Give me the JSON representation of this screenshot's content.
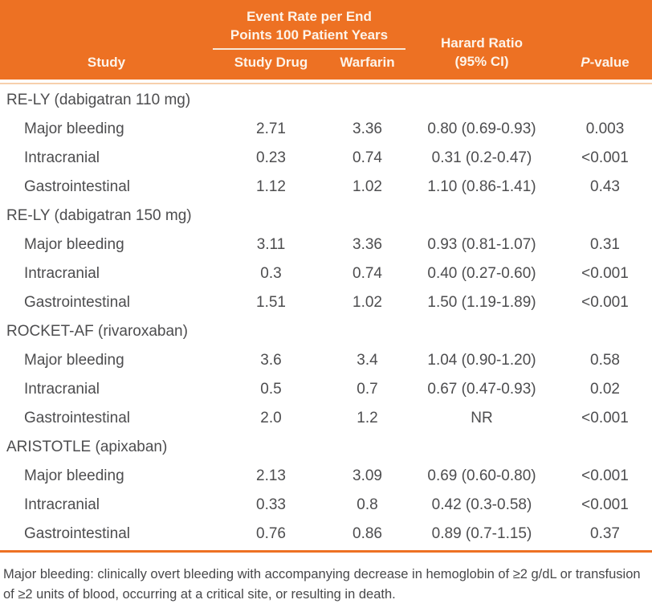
{
  "chart_data": {
    "type": "table",
    "span_header": "Event Rate per End Points 100 Patient Years",
    "columns": [
      "Study",
      "Study Drug",
      "Warfarin",
      "Harard Ratio (95% CI)",
      "P-value"
    ],
    "header": {
      "study": "Study",
      "study_drug": "Study Drug",
      "warfarin": "Warfarin",
      "hazard_line1": "Harard Ratio",
      "hazard_line2": "(95% CI)",
      "p_italic": "P",
      "p_suffix": "-value"
    },
    "groups": [
      {
        "name": "RE-LY (dabigatran 110 mg)",
        "rows": [
          {
            "label": "Major bleeding",
            "study_drug": "2.71",
            "warfarin": "3.36",
            "hr": "0.80 (0.69-0.93)",
            "p": "0.003"
          },
          {
            "label": "Intracranial",
            "study_drug": "0.23",
            "warfarin": "0.74",
            "hr": "0.31 (0.2-0.47)",
            "p": "<0.001"
          },
          {
            "label": "Gastrointestinal",
            "study_drug": "1.12",
            "warfarin": "1.02",
            "hr": "1.10 (0.86-1.41)",
            "p": "0.43"
          }
        ]
      },
      {
        "name": "RE-LY (dabigatran 150 mg)",
        "rows": [
          {
            "label": "Major bleeding",
            "study_drug": "3.11",
            "warfarin": "3.36",
            "hr": "0.93 (0.81-1.07)",
            "p": "0.31"
          },
          {
            "label": "Intracranial",
            "study_drug": "0.3",
            "warfarin": "0.74",
            "hr": "0.40 (0.27-0.60)",
            "p": "<0.001"
          },
          {
            "label": "Gastrointestinal",
            "study_drug": "1.51",
            "warfarin": "1.02",
            "hr": "1.50 (1.19-1.89)",
            "p": "<0.001"
          }
        ]
      },
      {
        "name": "ROCKET-AF (rivaroxaban)",
        "rows": [
          {
            "label": "Major bleeding",
            "study_drug": "3.6",
            "warfarin": "3.4",
            "hr": "1.04 (0.90-1.20)",
            "p": "0.58"
          },
          {
            "label": "Intracranial",
            "study_drug": "0.5",
            "warfarin": "0.7",
            "hr": "0.67 (0.47-0.93)",
            "p": "0.02"
          },
          {
            "label": "Gastrointestinal",
            "study_drug": "2.0",
            "warfarin": "1.2",
            "hr": "NR",
            "p": "<0.001"
          }
        ]
      },
      {
        "name": "ARISTOTLE (apixaban)",
        "rows": [
          {
            "label": "Major bleeding",
            "study_drug": "2.13",
            "warfarin": "3.09",
            "hr": "0.69 (0.60-0.80)",
            "p": "<0.001"
          },
          {
            "label": "Intracranial",
            "study_drug": "0.33",
            "warfarin": "0.8",
            "hr": "0.42 (0.3-0.58)",
            "p": "<0.001"
          },
          {
            "label": "Gastrointestinal",
            "study_drug": "0.76",
            "warfarin": "0.86",
            "hr": "0.89 (0.7-1.15)",
            "p": "0.37"
          }
        ]
      }
    ],
    "footnote": "Major bleeding: clinically overt bleeding with accompanying decrease in hemoglobin of ≥2 g/dL or transfusion of ≥2 units of blood, occurring at a critical site, or resulting in death.",
    "colors": {
      "accent_orange": "#ED7123",
      "header_text": "#FDF4EA",
      "divider_peach": "#F7D0AC",
      "body_text": "#4D4D4F"
    }
  }
}
